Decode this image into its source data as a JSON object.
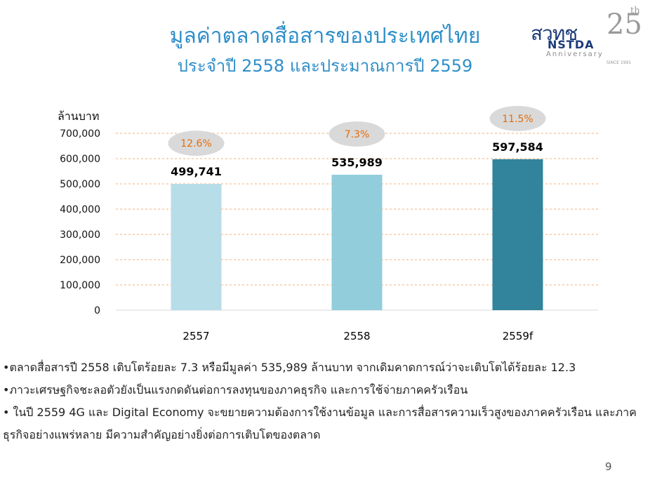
{
  "title": {
    "line1": "มูลค่าตลาดสื่อสารของประเทศไทย",
    "line2": "ประจำปี 2558 และประมาณการปี 2559"
  },
  "logo": {
    "name": "สวทช",
    "sub": "NSTDA",
    "anniv_number": "25",
    "anniv_suffix": "th",
    "anniv_word": "Anniversary",
    "since": "SINCE 1991"
  },
  "chart_data": {
    "type": "bar",
    "ylabel": "ล้านบาท",
    "categories": [
      "2557",
      "2558",
      "2559f"
    ],
    "values": [
      499741,
      535989,
      597584
    ],
    "value_labels": [
      "499,741",
      "535,989",
      "597,584"
    ],
    "growth_labels": [
      "12.6%",
      "7.3%",
      "11.5%"
    ],
    "ylim": [
      0,
      700000
    ],
    "yticks": [
      0,
      100000,
      200000,
      300000,
      400000,
      500000,
      600000,
      700000
    ],
    "ytick_labels": [
      "0",
      "100,000",
      "200,000",
      "300,000",
      "400,000",
      "500,000",
      "600,000",
      "700,000"
    ],
    "bar_colors": [
      "#b7dde8",
      "#92cddc",
      "#31849b"
    ],
    "growth_color": "#e46c0a",
    "grid": true,
    "gridline_style": "dashed",
    "gridline_color": "#f0b27a"
  },
  "bullets": [
    "•ตลาดสื่อสารปี 2558 เติบโตร้อยละ 7.3 หรือมีมูลค่า 535,989 ล้านบาท จากเดิมคาดการณ์ว่าจะเติบโตได้ร้อยละ 12.3",
    "•ภาวะเศรษฐกิจชะลอตัวยังเป็นแรงกดดันต่อการลงทุนของภาคธุรกิจ และการใช้จ่ายภาคครัวเรือน",
    "• ในปี 2559 4G และ Digital Economy จะขยายความต้องการใช้งานข้อมูล และการสื่อสารความเร็วสูงของภาคครัวเรือน และภาคธุรกิจอย่างแพร่หลาย มีความสำคัญอย่างยิ่งต่อการเติบโตของตลาด"
  ],
  "page_number": "9"
}
